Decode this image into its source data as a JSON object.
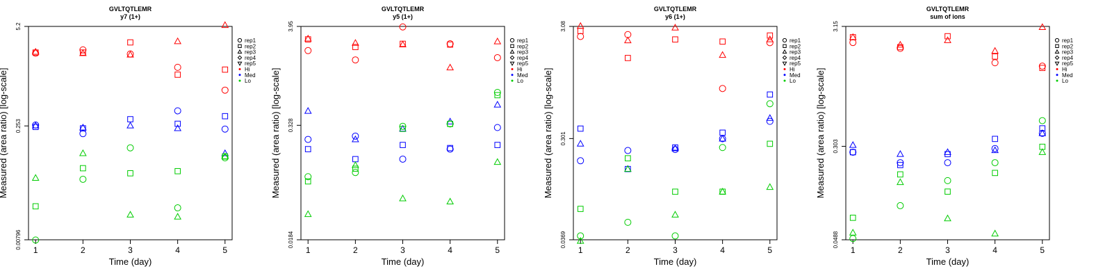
{
  "legend": {
    "entries": [
      {
        "label": "rep1",
        "marker": "circle"
      },
      {
        "label": "rep2",
        "marker": "square"
      },
      {
        "label": "rep3",
        "marker": "triangle-up"
      },
      {
        "label": "rep4",
        "marker": "diamond"
      },
      {
        "label": "rep5",
        "marker": "triangle-down"
      },
      {
        "label": "Hi",
        "marker": "dot",
        "color": "#ff0000"
      },
      {
        "label": "Med",
        "marker": "dot",
        "color": "#0000ff"
      },
      {
        "label": "Lo",
        "marker": "dot",
        "color": "#00cc00"
      }
    ],
    "placement": "right-outside"
  },
  "colors": {
    "Hi": "#ff0000",
    "Med": "#0000ff",
    "Lo": "#00cc00"
  },
  "chart_data": [
    {
      "type": "scatter",
      "title": "GVLTQTLEMR",
      "subtitle": "y7 (1+)",
      "xlabel": "Time (day)",
      "ylabel": "Measured (area ratio) [log-scale]",
      "y_scale": "log",
      "xlim": [
        0.85,
        5.15
      ],
      "ylim": [
        0.00796,
        5.2
      ],
      "x_ticks": [
        "1",
        "2",
        "3",
        "4",
        "5"
      ],
      "y_ticks": [
        "0.00796",
        "0.253",
        "5.2"
      ],
      "series": [
        {
          "group": "Hi",
          "rep": "rep1",
          "x": [
            1,
            2,
            3,
            4,
            5
          ],
          "y": [
            2.3,
            2.55,
            2.25,
            1.5,
            0.75
          ]
        },
        {
          "group": "Hi",
          "rep": "rep2",
          "x": [
            1,
            2,
            3,
            4,
            5
          ],
          "y": [
            2.35,
            2.35,
            3.2,
            1.2,
            1.4
          ]
        },
        {
          "group": "Hi",
          "rep": "rep3",
          "x": [
            1,
            2,
            3,
            4,
            5
          ],
          "y": [
            2.4,
            2.3,
            2.2,
            3.3,
            5.4
          ]
        },
        {
          "group": "Med",
          "rep": "rep1",
          "x": [
            1,
            2,
            3,
            4,
            5
          ],
          "y": [
            0.26,
            0.2,
            null,
            0.4,
            0.23
          ]
        },
        {
          "group": "Med",
          "rep": "rep2",
          "x": [
            1,
            2,
            3,
            4,
            5
          ],
          "y": [
            0.245,
            0.235,
            0.31,
            0.27,
            0.34
          ]
        },
        {
          "group": "Med",
          "rep": "rep3",
          "x": [
            1,
            2,
            3,
            4,
            5
          ],
          "y": [
            0.255,
            0.24,
            0.255,
            0.235,
            0.11
          ]
        },
        {
          "group": "Lo",
          "rep": "rep1",
          "x": [
            1,
            2,
            3,
            4,
            5
          ],
          "y": [
            0.0079,
            0.05,
            0.13,
            0.021,
            0.096
          ]
        },
        {
          "group": "Lo",
          "rep": "rep2",
          "x": [
            1,
            2,
            3,
            4,
            5
          ],
          "y": [
            0.022,
            0.07,
            0.06,
            0.064,
            0.1
          ]
        },
        {
          "group": "Lo",
          "rep": "rep3",
          "x": [
            1,
            2,
            3,
            4,
            5
          ],
          "y": [
            0.052,
            0.11,
            0.017,
            0.016,
            0.1
          ]
        }
      ]
    },
    {
      "type": "scatter",
      "title": "GVLTQTLEMR",
      "subtitle": "y5 (1+)",
      "xlabel": "Time (day)",
      "ylabel": "Measured (area ratio) [log-scale]",
      "y_scale": "log",
      "xlim": [
        0.85,
        5.15
      ],
      "ylim": [
        0.0184,
        3.95
      ],
      "x_ticks": [
        "1",
        "2",
        "3",
        "4",
        "5"
      ],
      "y_ticks": [
        "0.0184",
        "0.328",
        "3.95"
      ],
      "series": [
        {
          "group": "Hi",
          "rep": "rep1",
          "x": [
            1,
            2,
            3,
            4,
            5
          ],
          "y": [
            2.15,
            1.7,
            3.9,
            2.55,
            1.8
          ]
        },
        {
          "group": "Hi",
          "rep": "rep2",
          "x": [
            1,
            2,
            3,
            4,
            5
          ],
          "y": [
            2.85,
            2.35,
            2.55,
            2.5,
            null
          ]
        },
        {
          "group": "Hi",
          "rep": "rep3",
          "x": [
            1,
            2,
            3,
            4,
            5
          ],
          "y": [
            2.9,
            2.6,
            2.5,
            1.4,
            2.7
          ]
        },
        {
          "group": "Med",
          "rep": "rep1",
          "x": [
            1,
            2,
            3,
            4,
            5
          ],
          "y": [
            0.23,
            0.25,
            0.14,
            0.18,
            0.31
          ]
        },
        {
          "group": "Med",
          "rep": "rep2",
          "x": [
            1,
            2,
            3,
            4,
            5
          ],
          "y": [
            0.18,
            0.14,
            0.2,
            0.185,
            0.2
          ]
        },
        {
          "group": "Med",
          "rep": "rep3",
          "x": [
            1,
            2,
            3,
            4,
            5
          ],
          "y": [
            0.47,
            0.23,
            0.3,
            0.36,
            0.55
          ]
        },
        {
          "group": "Lo",
          "rep": "rep1",
          "x": [
            1,
            2,
            3,
            4,
            5
          ],
          "y": [
            0.09,
            0.1,
            0.32,
            0.34,
            0.75
          ]
        },
        {
          "group": "Lo",
          "rep": "rep2",
          "x": [
            1,
            2,
            3,
            4,
            5
          ],
          "y": [
            0.08,
            0.11,
            0.3,
            0.34,
            0.7
          ]
        },
        {
          "group": "Lo",
          "rep": "rep3",
          "x": [
            1,
            2,
            3,
            4,
            5
          ],
          "y": [
            0.035,
            0.12,
            0.052,
            0.048,
            0.13
          ]
        }
      ]
    },
    {
      "type": "scatter",
      "title": "GVLTQTLEMR",
      "subtitle": "y6 (1+)",
      "xlabel": "Time (day)",
      "ylabel": "Measured (area ratio) [log-scale]",
      "y_scale": "log",
      "xlim": [
        0.85,
        5.15
      ],
      "ylim": [
        0.0369,
        3.08
      ],
      "x_ticks": [
        "1",
        "2",
        "3",
        "4",
        "5"
      ],
      "y_ticks": [
        "0.0369",
        "0.301",
        "3.08"
      ],
      "series": [
        {
          "group": "Hi",
          "rep": "rep1",
          "x": [
            1,
            2,
            3,
            4,
            5
          ],
          "y": [
            2.5,
            2.6,
            null,
            0.85,
            2.2
          ]
        },
        {
          "group": "Hi",
          "rep": "rep2",
          "x": [
            1,
            2,
            3,
            4,
            5
          ],
          "y": [
            2.8,
            1.6,
            2.35,
            2.25,
            2.55
          ]
        },
        {
          "group": "Hi",
          "rep": "rep3",
          "x": [
            1,
            2,
            3,
            4,
            5
          ],
          "y": [
            3.1,
            2.3,
            3.0,
            1.7,
            2.35
          ]
        },
        {
          "group": "Med",
          "rep": "rep1",
          "x": [
            1,
            2,
            3,
            4,
            5
          ],
          "y": [
            0.19,
            0.235,
            0.24,
            0.3,
            0.43
          ]
        },
        {
          "group": "Med",
          "rep": "rep2",
          "x": [
            1,
            2,
            3,
            4,
            5
          ],
          "y": [
            0.37,
            0.16,
            0.25,
            0.34,
            0.75
          ]
        },
        {
          "group": "Med",
          "rep": "rep3",
          "x": [
            1,
            2,
            3,
            4,
            5
          ],
          "y": [
            0.27,
            0.16,
            0.245,
            0.3,
            0.46
          ]
        },
        {
          "group": "Lo",
          "rep": "rep1",
          "x": [
            1,
            2,
            3,
            4,
            5
          ],
          "y": [
            0.04,
            0.053,
            0.04,
            0.25,
            0.62
          ]
        },
        {
          "group": "Lo",
          "rep": "rep2",
          "x": [
            1,
            2,
            3,
            4,
            5
          ],
          "y": [
            0.07,
            0.2,
            0.1,
            0.1,
            0.27
          ]
        },
        {
          "group": "Lo",
          "rep": "rep3",
          "x": [
            1,
            2,
            3,
            4,
            5
          ],
          "y": [
            0.036,
            0.16,
            0.062,
            0.1,
            0.11
          ]
        }
      ]
    },
    {
      "type": "scatter",
      "title": "GVLTQTLEMR",
      "subtitle": "sum of ions",
      "xlabel": "Time (day)",
      "ylabel": "Measured (area ratio) [log-scale]",
      "y_scale": "log",
      "xlim": [
        0.85,
        5.15
      ],
      "ylim": [
        0.0488,
        3.15
      ],
      "x_ticks": [
        "1",
        "2",
        "3",
        "4",
        "5"
      ],
      "y_ticks": [
        "0.0488",
        "0.303",
        "3.15"
      ],
      "series": [
        {
          "group": "Hi",
          "rep": "rep1",
          "x": [
            1,
            2,
            3,
            4,
            5
          ],
          "y": [
            2.3,
            2.05,
            null,
            1.55,
            1.45
          ]
        },
        {
          "group": "Hi",
          "rep": "rep2",
          "x": [
            1,
            2,
            3,
            4,
            5
          ],
          "y": [
            2.55,
            2.1,
            2.6,
            1.75,
            1.4
          ]
        },
        {
          "group": "Hi",
          "rep": "rep3",
          "x": [
            1,
            2,
            3,
            4,
            5
          ],
          "y": [
            2.55,
            2.2,
            2.4,
            1.95,
            3.1
          ]
        },
        {
          "group": "Med",
          "rep": "rep1",
          "x": [
            1,
            2,
            3,
            4,
            5
          ],
          "y": [
            0.27,
            0.22,
            0.22,
            0.29,
            0.39
          ]
        },
        {
          "group": "Med",
          "rep": "rep2",
          "x": [
            1,
            2,
            3,
            4,
            5
          ],
          "y": [
            0.27,
            0.21,
            0.26,
            0.35,
            0.43
          ]
        },
        {
          "group": "Med",
          "rep": "rep3",
          "x": [
            1,
            2,
            3,
            4,
            5
          ],
          "y": [
            0.31,
            0.26,
            0.27,
            0.28,
            0.39
          ]
        },
        {
          "group": "Lo",
          "rep": "rep1",
          "x": [
            1,
            2,
            3,
            4,
            5
          ],
          "y": [
            0.05,
            0.095,
            0.155,
            0.22,
            0.5
          ]
        },
        {
          "group": "Lo",
          "rep": "rep2",
          "x": [
            1,
            2,
            3,
            4,
            5
          ],
          "y": [
            0.075,
            0.175,
            0.125,
            0.18,
            0.3
          ]
        },
        {
          "group": "Lo",
          "rep": "rep3",
          "x": [
            1,
            2,
            3,
            4,
            5
          ],
          "y": [
            0.056,
            0.15,
            0.074,
            0.055,
            0.27
          ]
        }
      ]
    }
  ]
}
